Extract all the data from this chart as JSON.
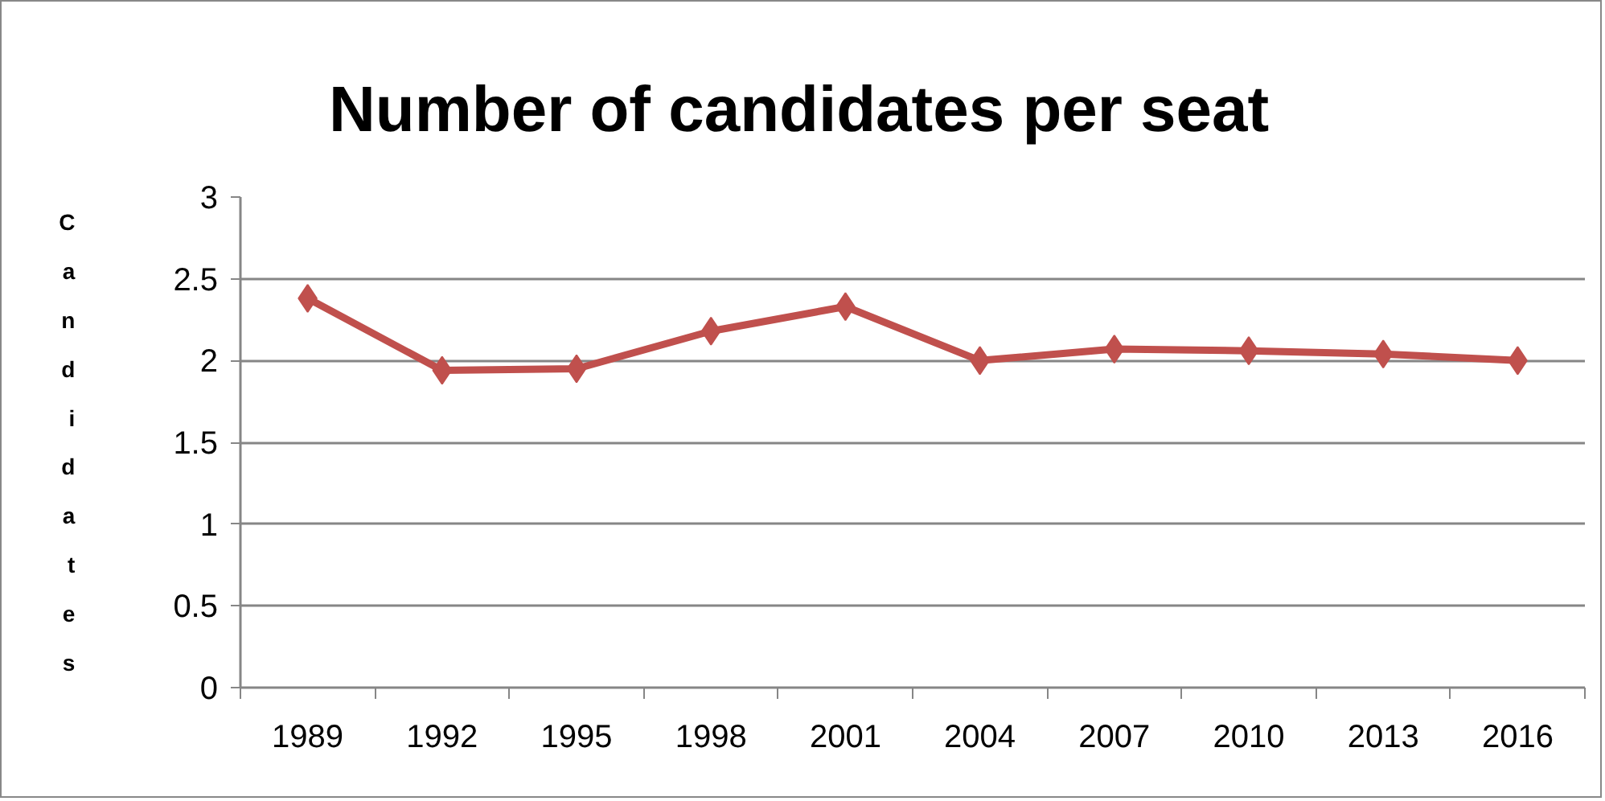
{
  "chart_data": {
    "type": "line",
    "title": "Number of candidates per seat",
    "ylabel": "Candidates",
    "categories": [
      "1989",
      "1992",
      "1995",
      "1998",
      "2001",
      "2004",
      "2007",
      "2010",
      "2013",
      "2016"
    ],
    "series": [
      {
        "color": "#c0504d",
        "values": [
          2.38,
          1.94,
          1.95,
          2.18,
          2.33,
          2.0,
          2.07,
          2.06,
          2.04,
          2.0
        ]
      }
    ],
    "ylim": [
      0,
      3
    ],
    "yticks": [
      0,
      0.5,
      1,
      1.5,
      2,
      2.5,
      3
    ],
    "grid": "y",
    "marker": "diamond",
    "line_style": "solid"
  }
}
